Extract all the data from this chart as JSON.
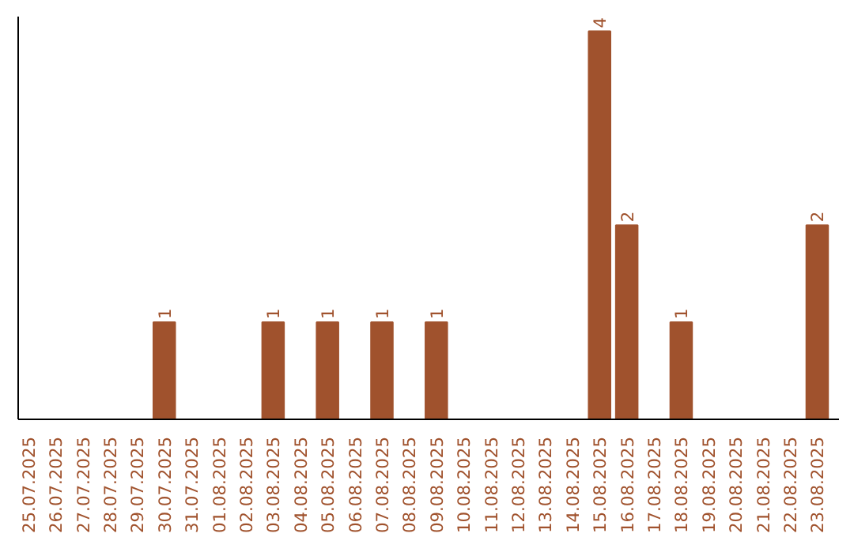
{
  "chart_data": {
    "type": "bar",
    "categories": [
      "25.07.2025",
      "26.07.2025",
      "27.07.2025",
      "28.07.2025",
      "29.07.2025",
      "30.07.2025",
      "31.07.2025",
      "01.08.2025",
      "02.08.2025",
      "03.08.2025",
      "04.08.2025",
      "05.08.2025",
      "06.08.2025",
      "07.08.2025",
      "08.08.2025",
      "09.08.2025",
      "10.08.2025",
      "11.08.2025",
      "12.08.2025",
      "13.08.2025",
      "14.08.2025",
      "15.08.2025",
      "16.08.2025",
      "17.08.2025",
      "18.08.2025",
      "19.08.2025",
      "20.08.2025",
      "21.08.2025",
      "22.08.2025",
      "23.08.2025"
    ],
    "values": [
      0,
      0,
      0,
      0,
      0,
      1,
      0,
      0,
      0,
      1,
      0,
      1,
      0,
      1,
      0,
      1,
      0,
      0,
      0,
      0,
      0,
      4,
      2,
      0,
      1,
      0,
      0,
      0,
      0,
      2
    ],
    "value_labels": [
      null,
      null,
      null,
      null,
      null,
      "1",
      null,
      null,
      null,
      "1",
      null,
      "1",
      null,
      "1",
      null,
      "1",
      null,
      null,
      null,
      null,
      null,
      "4",
      "2",
      null,
      "1",
      null,
      null,
      null,
      null,
      "2"
    ],
    "color": "#a0522d",
    "ylim": [
      0,
      4.15
    ],
    "tick_labels": "x",
    "grid": false
  }
}
